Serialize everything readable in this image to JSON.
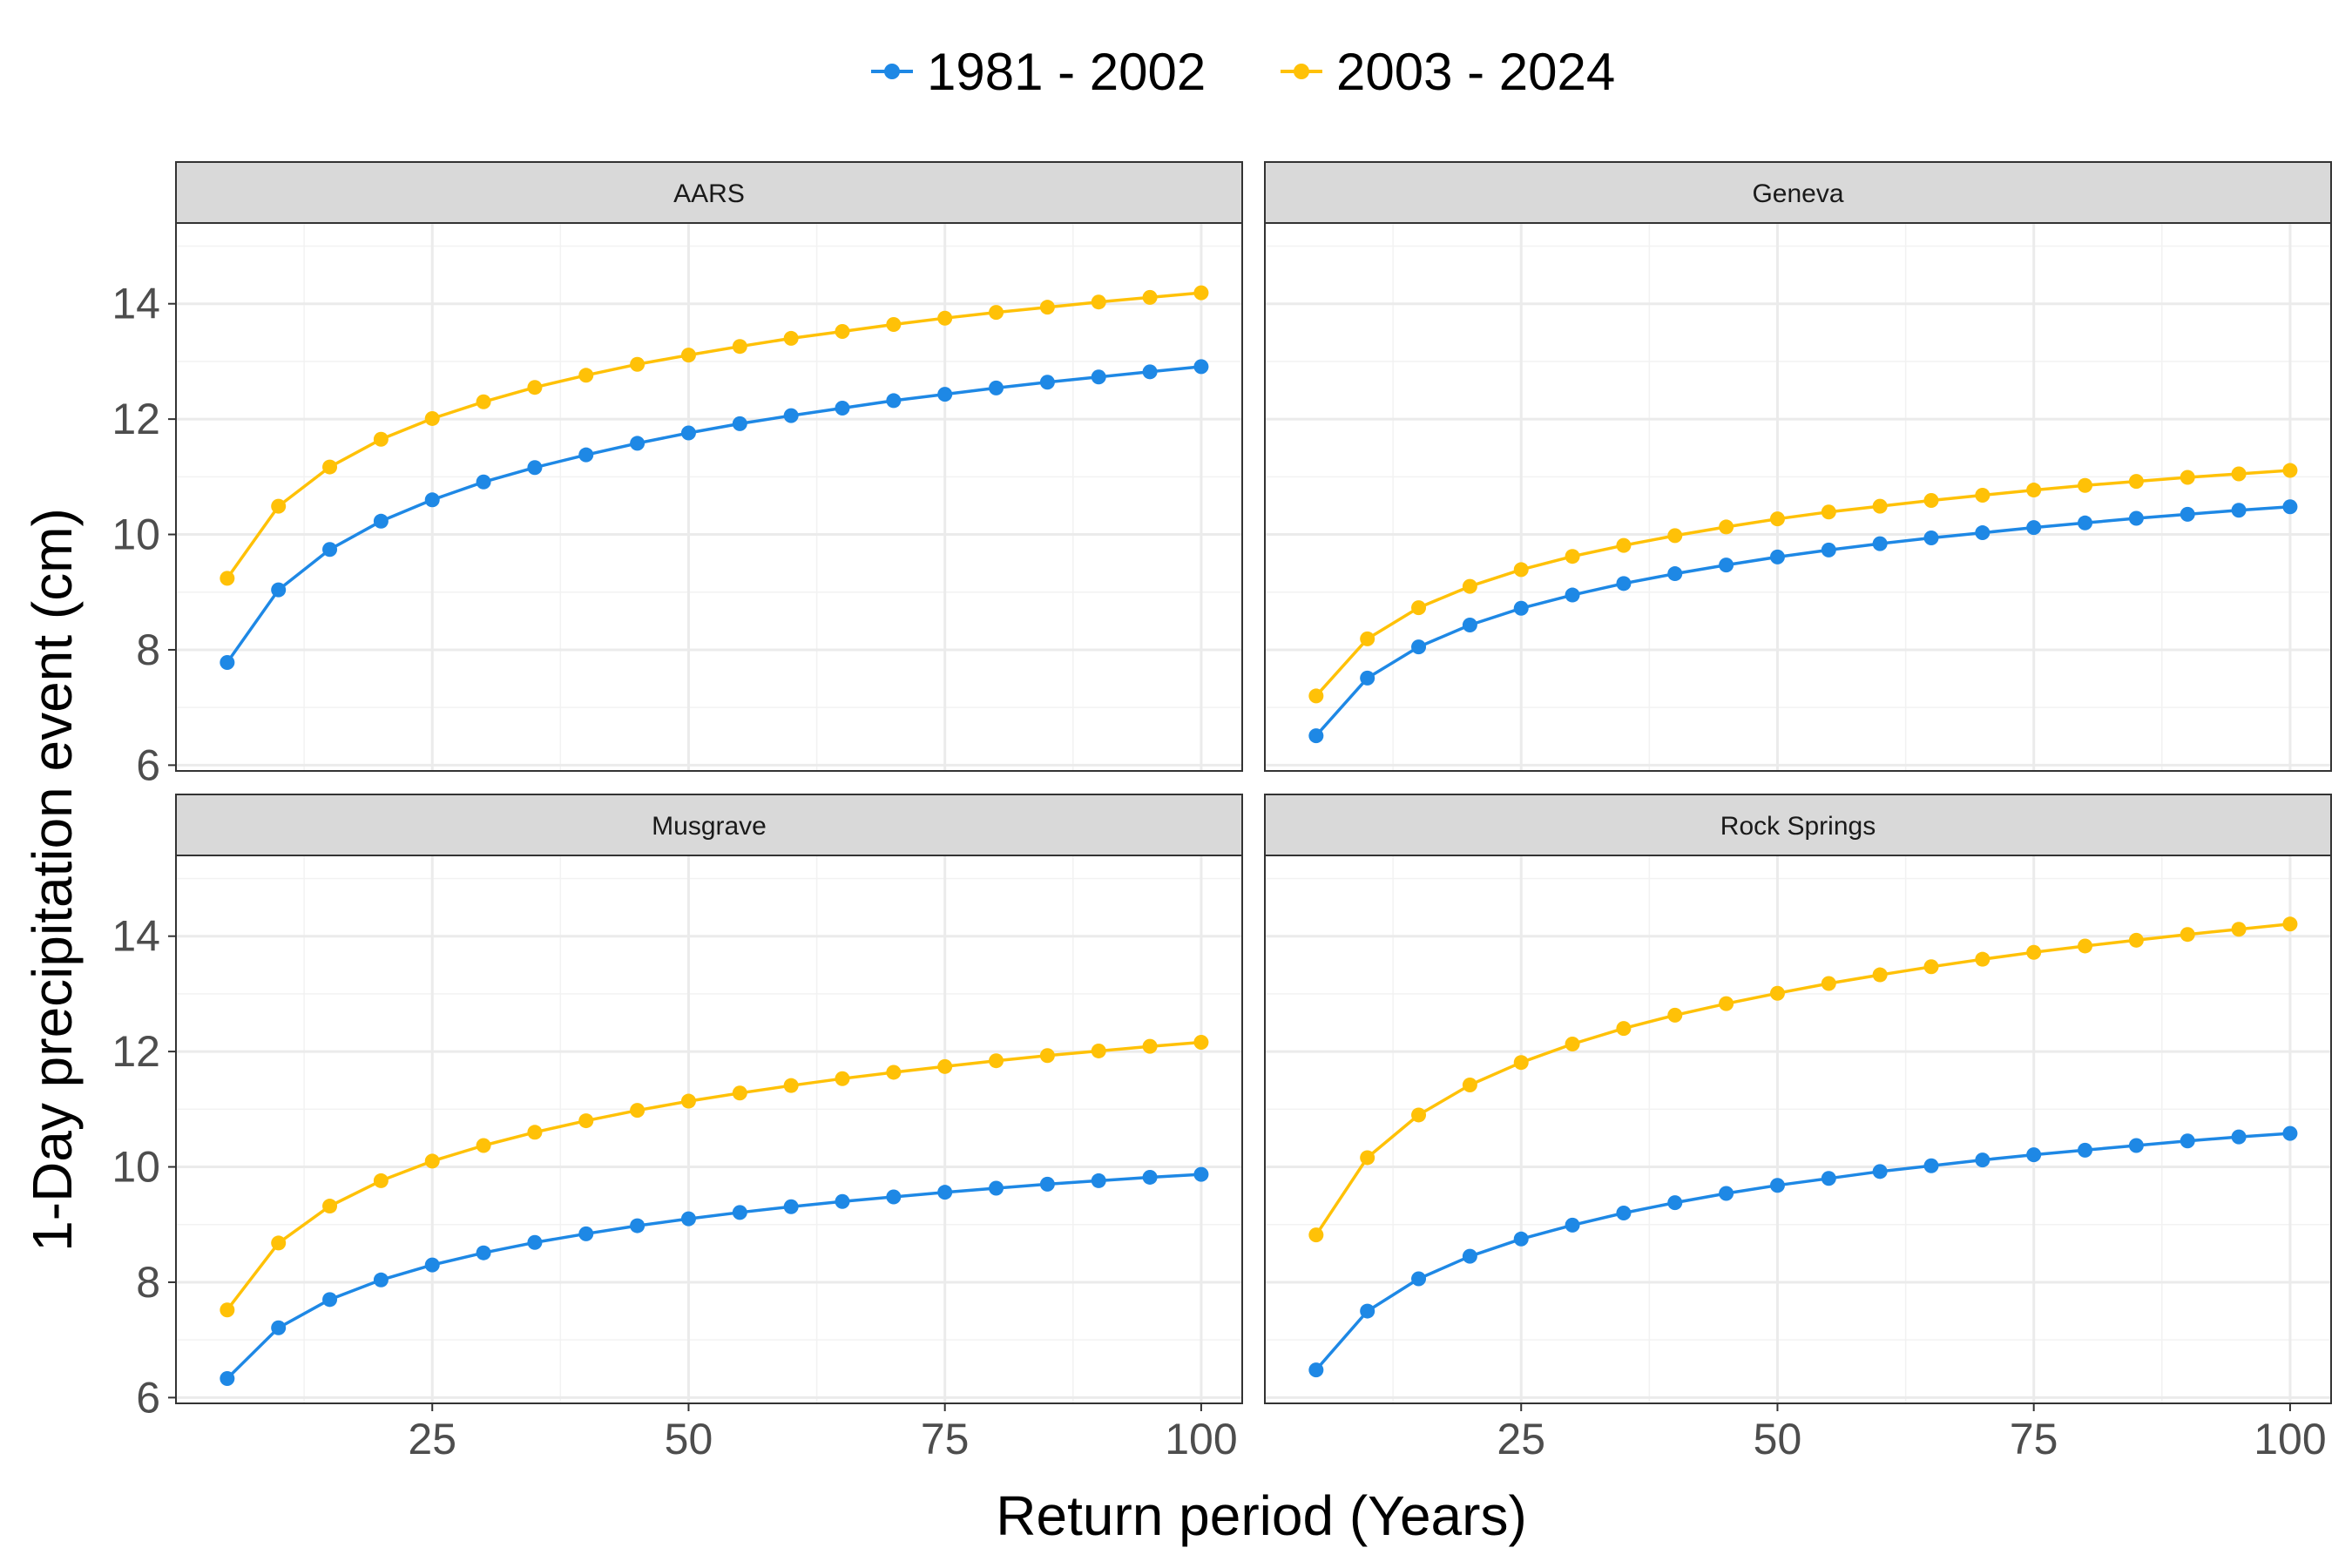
{
  "chart_data": {
    "type": "line",
    "xlabel": "Return period (Years)",
    "ylabel": "1-Day precipitation event (cm)",
    "x": [
      5,
      10,
      15,
      20,
      25,
      30,
      35,
      40,
      45,
      50,
      55,
      60,
      65,
      70,
      75,
      80,
      85,
      90,
      95,
      100
    ],
    "xlim": [
      0,
      104
    ],
    "ylim": [
      5.9,
      15.4
    ],
    "x_ticks": [
      25,
      50,
      75,
      100
    ],
    "y_ticks": [
      6,
      8,
      10,
      12,
      14
    ],
    "grid": true,
    "legend": {
      "position": "top",
      "entries": [
        {
          "name": "1981 - 2002",
          "color": "#1e88e5"
        },
        {
          "name": "2003 - 2024",
          "color": "#ffc107"
        }
      ]
    },
    "panels": [
      {
        "title": "AARS",
        "series": [
          {
            "name": "1981 - 2002",
            "color": "#1e88e5",
            "values": [
              7.78,
              9.04,
              9.74,
              10.23,
              10.6,
              10.91,
              11.16,
              11.38,
              11.58,
              11.76,
              11.92,
              12.06,
              12.19,
              12.32,
              12.43,
              12.54,
              12.64,
              12.73,
              12.82,
              12.91
            ]
          },
          {
            "name": "2003 - 2024",
            "color": "#ffc107",
            "values": [
              9.24,
              10.49,
              11.17,
              11.65,
              12.01,
              12.3,
              12.55,
              12.76,
              12.95,
              13.11,
              13.26,
              13.4,
              13.52,
              13.64,
              13.75,
              13.85,
              13.94,
              14.03,
              14.11,
              14.19
            ]
          }
        ]
      },
      {
        "title": "Geneva",
        "series": [
          {
            "name": "1981 - 2002",
            "color": "#1e88e5",
            "values": [
              6.51,
              7.51,
              8.05,
              8.43,
              8.72,
              8.95,
              9.15,
              9.32,
              9.47,
              9.61,
              9.73,
              9.84,
              9.94,
              10.03,
              10.12,
              10.2,
              10.28,
              10.35,
              10.42,
              10.48
            ]
          },
          {
            "name": "2003 - 2024",
            "color": "#ffc107",
            "values": [
              7.2,
              8.19,
              8.73,
              9.1,
              9.39,
              9.62,
              9.81,
              9.98,
              10.13,
              10.27,
              10.39,
              10.49,
              10.59,
              10.68,
              10.77,
              10.85,
              10.92,
              10.99,
              11.05,
              11.11
            ]
          }
        ]
      },
      {
        "title": "Musgrave",
        "series": [
          {
            "name": "1981 - 2002",
            "color": "#1e88e5",
            "values": [
              6.33,
              7.21,
              7.7,
              8.04,
              8.3,
              8.51,
              8.69,
              8.84,
              8.98,
              9.1,
              9.21,
              9.31,
              9.4,
              9.48,
              9.56,
              9.63,
              9.7,
              9.76,
              9.82,
              9.87
            ]
          },
          {
            "name": "2003 - 2024",
            "color": "#ffc107",
            "values": [
              7.52,
              8.68,
              9.32,
              9.76,
              10.1,
              10.37,
              10.6,
              10.8,
              10.98,
              11.14,
              11.28,
              11.41,
              11.53,
              11.64,
              11.74,
              11.84,
              11.93,
              12.01,
              12.09,
              12.16
            ]
          }
        ]
      },
      {
        "title": "Rock Springs",
        "series": [
          {
            "name": "1981 - 2002",
            "color": "#1e88e5",
            "values": [
              6.48,
              7.5,
              8.06,
              8.45,
              8.75,
              8.99,
              9.2,
              9.38,
              9.54,
              9.68,
              9.8,
              9.92,
              10.02,
              10.12,
              10.21,
              10.29,
              10.37,
              10.45,
              10.52,
              10.58
            ]
          },
          {
            "name": "2003 - 2024",
            "color": "#ffc107",
            "values": [
              8.82,
              10.16,
              10.9,
              11.42,
              11.81,
              12.13,
              12.4,
              12.63,
              12.83,
              13.01,
              13.18,
              13.33,
              13.47,
              13.6,
              13.72,
              13.83,
              13.93,
              14.03,
              14.12,
              14.21
            ]
          }
        ]
      }
    ]
  }
}
